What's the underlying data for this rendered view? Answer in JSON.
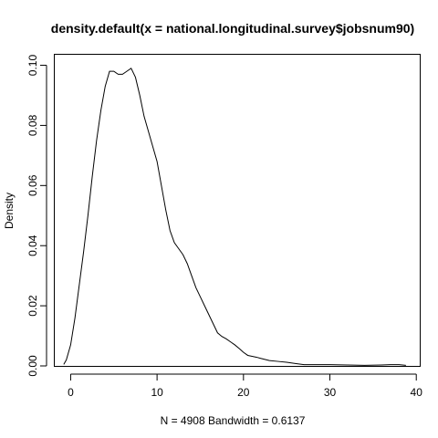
{
  "chart_data": {
    "type": "line",
    "title": "density.default(x = national.longitudinal.survey$jobsnum90)",
    "xlabel": "N = 4908   Bandwidth = 0.6137",
    "ylabel": "Density",
    "xlim": [
      -1.84,
      40.4
    ],
    "ylim": [
      0,
      0.1035
    ],
    "x_ticks": [
      0,
      10,
      20,
      30,
      40
    ],
    "y_ticks": [
      0.0,
      0.02,
      0.04,
      0.06,
      0.08,
      0.1
    ],
    "x_tick_labels": [
      "0",
      "10",
      "20",
      "30",
      "40"
    ],
    "y_tick_labels": [
      "0.00",
      "0.02",
      "0.04",
      "0.06",
      "0.08",
      "0.10"
    ],
    "grid": false,
    "legend": "none",
    "series": [
      {
        "x": [
          -0.8,
          -0.5,
          0,
          0.5,
          1,
          1.5,
          2,
          2.5,
          3,
          3.5,
          4,
          4.5,
          5,
          5.5,
          6,
          6.5,
          7,
          7.5,
          8,
          8.5,
          9,
          9.5,
          10,
          10.5,
          11,
          11.5,
          12,
          12.5,
          13,
          13.5,
          14,
          14.5,
          15,
          15.5,
          16,
          16.5,
          17,
          17.5,
          18,
          18.5,
          19,
          19.5,
          20,
          20.5,
          21,
          21.5,
          22,
          23,
          24,
          25,
          26,
          27,
          28,
          30,
          32,
          34,
          36,
          37,
          38,
          38.8
        ],
        "y": [
          0.0005,
          0.002,
          0.007,
          0.016,
          0.027,
          0.038,
          0.05,
          0.063,
          0.075,
          0.085,
          0.093,
          0.098,
          0.098,
          0.097,
          0.097,
          0.098,
          0.099,
          0.096,
          0.09,
          0.083,
          0.078,
          0.073,
          0.068,
          0.06,
          0.052,
          0.045,
          0.041,
          0.039,
          0.037,
          0.034,
          0.03,
          0.026,
          0.023,
          0.02,
          0.017,
          0.014,
          0.011,
          0.0098,
          0.009,
          0.008,
          0.007,
          0.0058,
          0.0045,
          0.0035,
          0.0032,
          0.0029,
          0.0025,
          0.0018,
          0.0015,
          0.0012,
          0.0008,
          0.0004,
          0.0004,
          0.0004,
          0.0003,
          0.0002,
          0.0003,
          0.0004,
          0.0004,
          0.0002
        ]
      }
    ]
  }
}
